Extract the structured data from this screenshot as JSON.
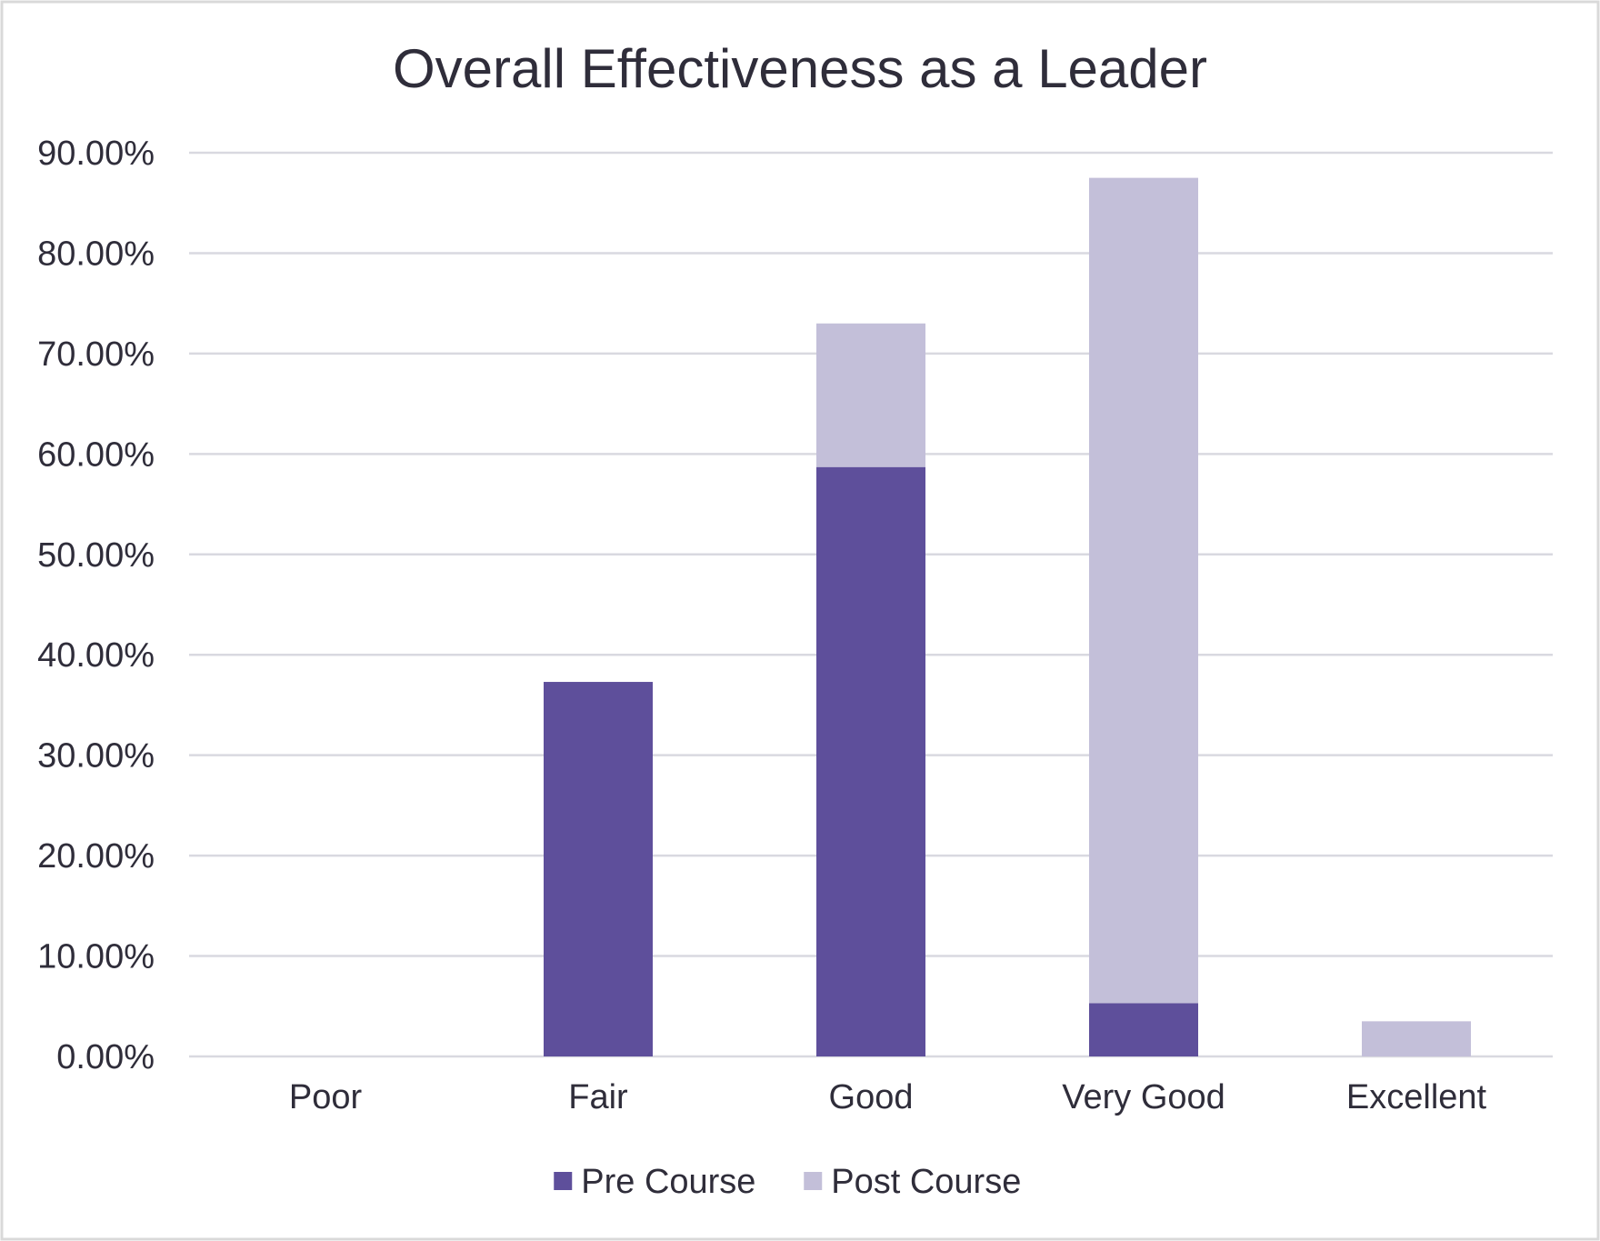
{
  "chart_data": {
    "type": "bar",
    "stacked": true,
    "title": "Overall Effectiveness as a Leader",
    "xlabel": "",
    "ylabel": "",
    "categories": [
      "Poor",
      "Fair",
      "Good",
      "Very Good",
      "Excellent"
    ],
    "series": [
      {
        "name": "Pre Course",
        "values": [
          0,
          37.3,
          58.7,
          5.3,
          0
        ],
        "color": "#5e4f9b"
      },
      {
        "name": "Post Course",
        "values": [
          0,
          0,
          14.3,
          82.2,
          3.5
        ],
        "color": "#c3bfd9"
      }
    ],
    "ylim": [
      0,
      90
    ],
    "y_ticks": [
      0,
      10,
      20,
      30,
      40,
      50,
      60,
      70,
      80,
      90
    ],
    "y_tick_labels": [
      "0.00%",
      "10.00%",
      "20.00%",
      "30.00%",
      "40.00%",
      "50.00%",
      "60.00%",
      "70.00%",
      "80.00%",
      "90.00%"
    ],
    "grid": true,
    "legend_position": "bottom-center"
  }
}
